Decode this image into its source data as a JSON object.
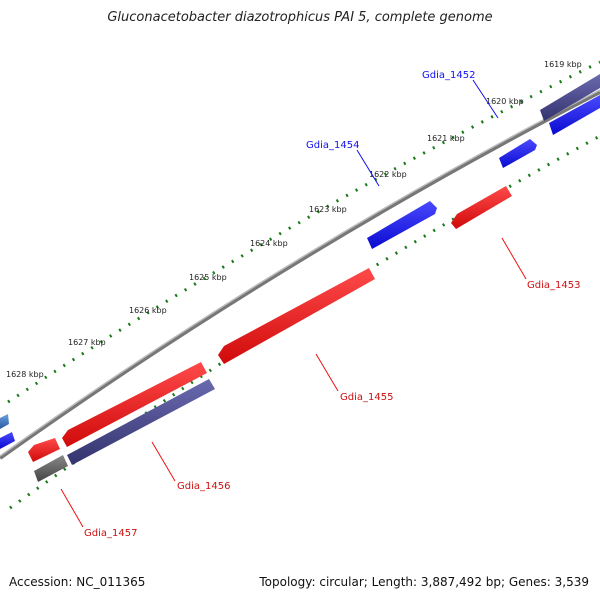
{
  "title": "Gluconacetobacter diazotrophicus PAI 5, complete genome",
  "accession": "Accession: NC_011365",
  "summary": "Topology: circular; Length: 3,887,492 bp; Genes: 3,539",
  "colors": {
    "forward_gene": "#1010ee",
    "reverse_gene": "#ee1111",
    "dark_gene": "#404080",
    "gray_gene": "#606060",
    "tick": "#1a7a1a",
    "backbone": "#888888"
  },
  "kbp_labels": [
    "1619 kbp",
    "1620 kbp",
    "1621 kbp",
    "1622 kbp",
    "1623 kbp",
    "1624 kbp",
    "1625 kbp",
    "1626 kbp",
    "1627 kbp",
    "1628 kbp"
  ],
  "gene_labels": [
    {
      "name": "Gdia_1452",
      "strand": "forward"
    },
    {
      "name": "Gdia_1454",
      "strand": "forward"
    },
    {
      "name": "Gdia_1453",
      "strand": "reverse"
    },
    {
      "name": "Gdia_1455",
      "strand": "reverse"
    },
    {
      "name": "Gdia_1456",
      "strand": "reverse"
    },
    {
      "name": "Gdia_1457",
      "strand": "reverse"
    }
  ]
}
